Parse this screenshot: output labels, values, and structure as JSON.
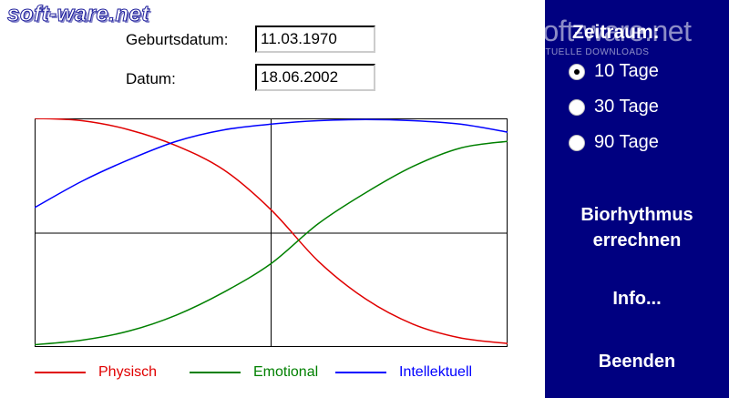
{
  "watermark": {
    "left": "soft-ware.net",
    "right_brand": "soft-ware.net",
    "right_sub": "AKTUELLE DOWNLOADS"
  },
  "form": {
    "birth_label": "Geburtsdatum:",
    "birth_value": "11.03.1970",
    "date_label": "Datum:",
    "date_value": "18.06.2002"
  },
  "chart_data": {
    "type": "line",
    "title": "",
    "x": [
      0,
      1,
      2,
      3,
      4,
      5,
      6,
      7,
      8,
      9,
      10
    ],
    "xlim": [
      0,
      10
    ],
    "ylim": [
      -1,
      1
    ],
    "series": [
      {
        "name": "Physisch",
        "color": "#e00000",
        "values": [
          1.0,
          0.98,
          0.9,
          0.76,
          0.55,
          0.2,
          -0.25,
          -0.58,
          -0.8,
          -0.92,
          -0.97
        ]
      },
      {
        "name": "Emotional",
        "color": "#008000",
        "values": [
          -0.98,
          -0.94,
          -0.86,
          -0.72,
          -0.52,
          -0.27,
          0.08,
          0.35,
          0.58,
          0.74,
          0.8
        ]
      },
      {
        "name": "Intellektuell",
        "color": "#0000ff",
        "values": [
          0.22,
          0.45,
          0.64,
          0.8,
          0.9,
          0.95,
          0.98,
          0.99,
          0.98,
          0.95,
          0.88
        ]
      }
    ]
  },
  "legend": {
    "physical": "Physisch",
    "emotional": "Emotional",
    "intellectual": "Intellektuell",
    "colors": {
      "physical": "#e00000",
      "emotional": "#008000",
      "intellectual": "#0000ff"
    }
  },
  "sidebar": {
    "period_title": "Zeitraum:",
    "options": [
      {
        "label": "10 Tage",
        "selected": true
      },
      {
        "label": "30 Tage",
        "selected": false
      },
      {
        "label": "90 Tage",
        "selected": false
      }
    ],
    "calc_line1": "Biorhythmus",
    "calc_line2": "errechnen",
    "info": "Info...",
    "exit": "Beenden"
  },
  "colors": {
    "sidebar_bg": "#000080",
    "physical": "#e00000",
    "emotional": "#008000",
    "intellectual": "#0000ff"
  }
}
